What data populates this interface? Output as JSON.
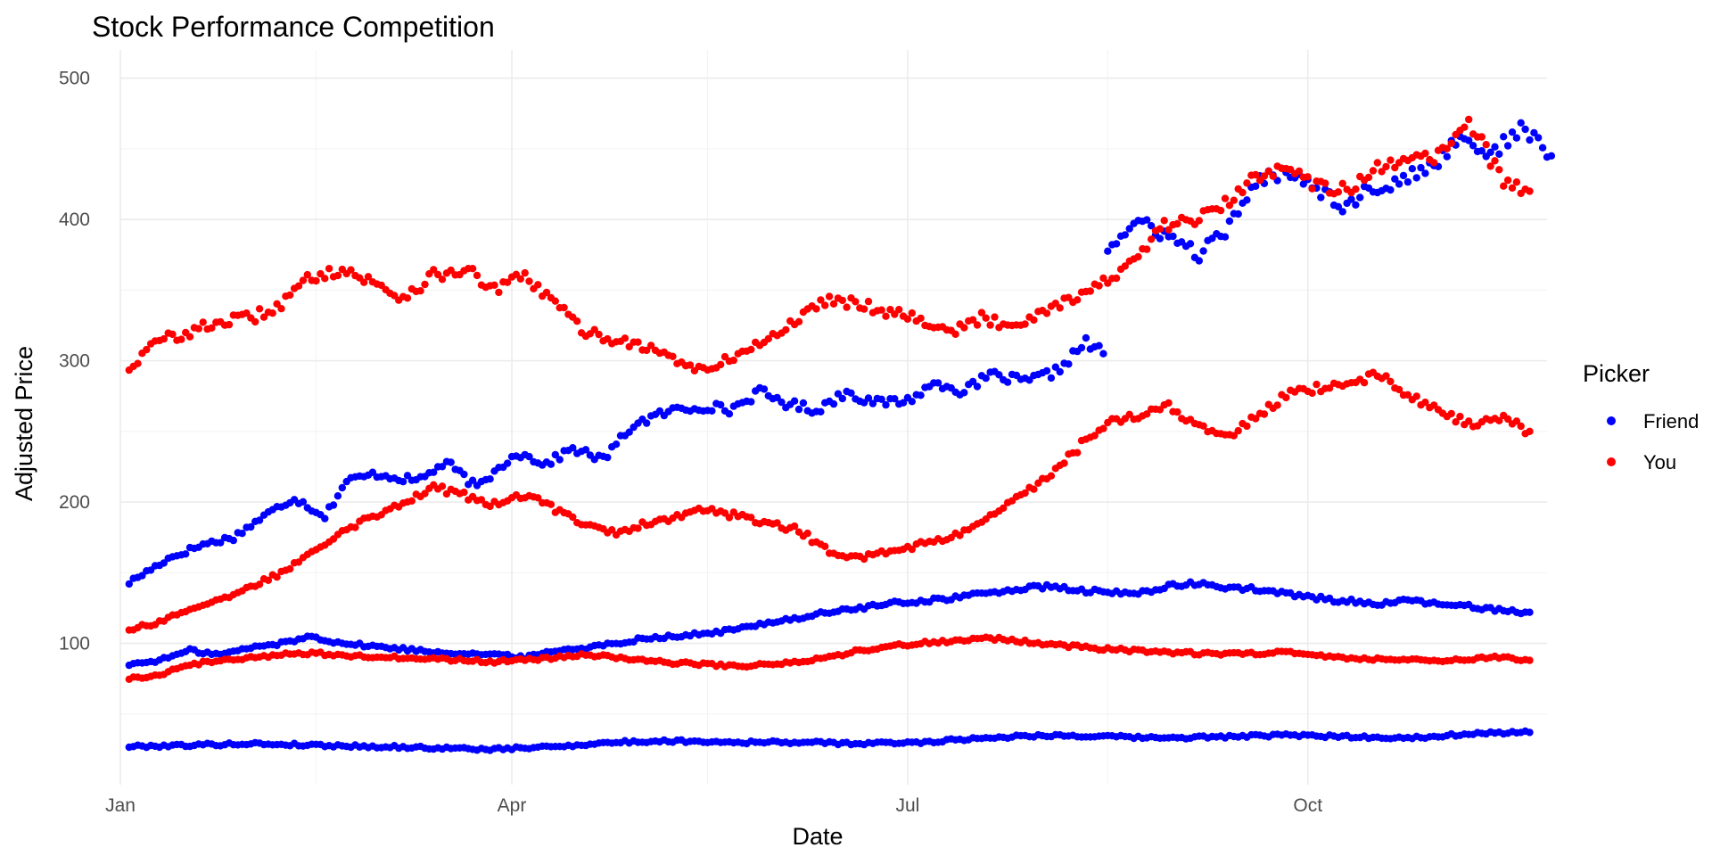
{
  "chart_data": {
    "type": "scatter",
    "title": "Stock Performance Competition",
    "xlabel": "Date",
    "ylabel": "Adjusted Price",
    "x_type": "date",
    "xlim": [
      "2023-01-01",
      "2023-11-25"
    ],
    "ylim": [
      0,
      520
    ],
    "x_ticks": [
      {
        "date": "2023-01-01",
        "label": "Jan"
      },
      {
        "date": "2023-04-01",
        "label": "Apr"
      },
      {
        "date": "2023-07-01",
        "label": "Jul"
      },
      {
        "date": "2023-10-01",
        "label": "Oct"
      }
    ],
    "x_minor_ticks": [
      "2023-02-15",
      "2023-05-16",
      "2023-08-16"
    ],
    "y_ticks": [
      100,
      200,
      300,
      400,
      500
    ],
    "y_minor_ticks": [
      50,
      150,
      250,
      350,
      450
    ],
    "grid": true,
    "legend": {
      "title": "Picker",
      "position": "right"
    },
    "series": [
      {
        "name": "Friend",
        "color": "#0000ff",
        "traces": [
          {
            "points": [
              [
                "2023-01-03",
                143
              ],
              [
                "2023-01-12",
                160
              ],
              [
                "2023-01-20",
                170
              ],
              [
                "2023-01-27",
                175
              ],
              [
                "2023-02-03",
                190
              ],
              [
                "2023-02-10",
                203
              ],
              [
                "2023-02-17",
                190
              ],
              [
                "2023-02-22",
                215
              ],
              [
                "2023-03-01",
                220
              ],
              [
                "2023-03-10",
                215
              ],
              [
                "2023-03-17",
                228
              ],
              [
                "2023-03-24",
                210
              ],
              [
                "2023-04-02",
                235
              ],
              [
                "2023-04-09",
                227
              ],
              [
                "2023-04-15",
                238
              ],
              [
                "2023-04-22",
                230
              ],
              [
                "2023-04-29",
                255
              ],
              [
                "2023-05-08",
                265
              ],
              [
                "2023-05-16",
                268
              ],
              [
                "2023-05-21",
                265
              ],
              [
                "2023-05-28",
                278
              ],
              [
                "2023-06-03",
                270
              ],
              [
                "2023-06-10",
                265
              ],
              [
                "2023-06-17",
                278
              ],
              [
                "2023-06-24",
                270
              ],
              [
                "2023-07-01",
                272
              ],
              [
                "2023-07-08",
                285
              ],
              [
                "2023-07-14",
                278
              ],
              [
                "2023-07-20",
                290
              ],
              [
                "2023-07-28",
                285
              ],
              [
                "2023-08-04",
                292
              ],
              [
                "2023-08-11",
                313
              ],
              [
                "2023-08-15",
                305
              ]
            ]
          },
          {
            "points": [
              [
                "2023-08-16",
                380
              ],
              [
                "2023-08-23",
                398
              ],
              [
                "2023-08-30",
                388
              ],
              [
                "2023-09-06",
                375
              ],
              [
                "2023-09-13",
                395
              ],
              [
                "2023-09-20",
                428
              ],
              [
                "2023-09-27",
                435
              ],
              [
                "2023-10-02",
                425
              ],
              [
                "2023-10-09",
                410
              ],
              [
                "2023-10-16",
                422
              ],
              [
                "2023-10-23",
                428
              ],
              [
                "2023-10-30",
                438
              ],
              [
                "2023-11-05",
                460
              ],
              [
                "2023-11-12",
                445
              ],
              [
                "2023-11-19",
                465
              ],
              [
                "2023-11-26",
                445
              ]
            ]
          }
        ]
      },
      {
        "name": "Friend",
        "color": "#0000ff",
        "points": [
          [
            "2023-01-03",
            85
          ],
          [
            "2023-01-10",
            88
          ],
          [
            "2023-01-17",
            95
          ],
          [
            "2023-01-24",
            92
          ],
          [
            "2023-01-31",
            97
          ],
          [
            "2023-02-07",
            100
          ],
          [
            "2023-02-14",
            105
          ],
          [
            "2023-02-21",
            100
          ],
          [
            "2023-02-28",
            98
          ],
          [
            "2023-03-07",
            96
          ],
          [
            "2023-03-14",
            94
          ],
          [
            "2023-03-21",
            93
          ],
          [
            "2023-03-28",
            92
          ],
          [
            "2023-04-04",
            90
          ],
          [
            "2023-04-11",
            95
          ],
          [
            "2023-04-18",
            97
          ],
          [
            "2023-04-25",
            100
          ],
          [
            "2023-05-02",
            104
          ],
          [
            "2023-05-09",
            105
          ],
          [
            "2023-05-16",
            107
          ],
          [
            "2023-05-23",
            110
          ],
          [
            "2023-05-30",
            115
          ],
          [
            "2023-06-06",
            118
          ],
          [
            "2023-06-13",
            122
          ],
          [
            "2023-06-20",
            125
          ],
          [
            "2023-06-27",
            128
          ],
          [
            "2023-07-04",
            130
          ],
          [
            "2023-07-11",
            132
          ],
          [
            "2023-07-18",
            135
          ],
          [
            "2023-07-25",
            138
          ],
          [
            "2023-08-01",
            140
          ],
          [
            "2023-08-08",
            138
          ],
          [
            "2023-08-15",
            136
          ],
          [
            "2023-08-22",
            135
          ],
          [
            "2023-08-29",
            140
          ],
          [
            "2023-09-05",
            142
          ],
          [
            "2023-09-12",
            140
          ],
          [
            "2023-09-19",
            138
          ],
          [
            "2023-09-26",
            135
          ],
          [
            "2023-10-03",
            132
          ],
          [
            "2023-10-10",
            130
          ],
          [
            "2023-10-17",
            128
          ],
          [
            "2023-10-24",
            130
          ],
          [
            "2023-10-31",
            128
          ],
          [
            "2023-11-07",
            126
          ],
          [
            "2023-11-14",
            124
          ],
          [
            "2023-11-21",
            122
          ]
        ]
      },
      {
        "name": "Friend",
        "color": "#0000ff",
        "points": [
          [
            "2023-01-03",
            27
          ],
          [
            "2023-01-17",
            28
          ],
          [
            "2023-01-31",
            29
          ],
          [
            "2023-02-14",
            28
          ],
          [
            "2023-02-28",
            27
          ],
          [
            "2023-03-14",
            26
          ],
          [
            "2023-03-28",
            25
          ],
          [
            "2023-04-11",
            27
          ],
          [
            "2023-04-25",
            30
          ],
          [
            "2023-05-09",
            31
          ],
          [
            "2023-05-23",
            30
          ],
          [
            "2023-06-06",
            30
          ],
          [
            "2023-06-20",
            29
          ],
          [
            "2023-07-04",
            30
          ],
          [
            "2023-07-18",
            33
          ],
          [
            "2023-08-01",
            35
          ],
          [
            "2023-08-15",
            34
          ],
          [
            "2023-08-29",
            33
          ],
          [
            "2023-09-12",
            34
          ],
          [
            "2023-09-26",
            35
          ],
          [
            "2023-10-10",
            34
          ],
          [
            "2023-10-24",
            33
          ],
          [
            "2023-11-07",
            36
          ],
          [
            "2023-11-21",
            37
          ]
        ]
      },
      {
        "name": "You",
        "color": "#ff0000",
        "points": [
          [
            "2023-01-03",
            295
          ],
          [
            "2023-01-10",
            315
          ],
          [
            "2023-01-17",
            320
          ],
          [
            "2023-01-24",
            328
          ],
          [
            "2023-01-31",
            330
          ],
          [
            "2023-02-07",
            340
          ],
          [
            "2023-02-14",
            360
          ],
          [
            "2023-02-21",
            365
          ],
          [
            "2023-02-28",
            355
          ],
          [
            "2023-03-07",
            345
          ],
          [
            "2023-03-14",
            360
          ],
          [
            "2023-03-21",
            365
          ],
          [
            "2023-03-28",
            350
          ],
          [
            "2023-04-04",
            360
          ],
          [
            "2023-04-11",
            340
          ],
          [
            "2023-04-18",
            320
          ],
          [
            "2023-04-25",
            315
          ],
          [
            "2023-05-02",
            310
          ],
          [
            "2023-05-09",
            300
          ],
          [
            "2023-05-16",
            292
          ],
          [
            "2023-05-23",
            305
          ],
          [
            "2023-05-30",
            315
          ],
          [
            "2023-06-06",
            330
          ],
          [
            "2023-06-13",
            345
          ],
          [
            "2023-06-20",
            340
          ],
          [
            "2023-06-27",
            335
          ],
          [
            "2023-07-04",
            330
          ],
          [
            "2023-07-11",
            320
          ],
          [
            "2023-07-18",
            330
          ],
          [
            "2023-07-25",
            325
          ],
          [
            "2023-08-01",
            335
          ],
          [
            "2023-08-08",
            345
          ],
          [
            "2023-08-15",
            355
          ],
          [
            "2023-08-22",
            370
          ],
          [
            "2023-08-29",
            395
          ],
          [
            "2023-09-05",
            400
          ],
          [
            "2023-09-12",
            410
          ],
          [
            "2023-09-19",
            430
          ],
          [
            "2023-09-26",
            440
          ],
          [
            "2023-10-03",
            425
          ],
          [
            "2023-10-10",
            420
          ],
          [
            "2023-10-17",
            435
          ],
          [
            "2023-10-24",
            440
          ],
          [
            "2023-10-31",
            445
          ],
          [
            "2023-11-07",
            470
          ],
          [
            "2023-11-14",
            430
          ],
          [
            "2023-11-21",
            420
          ]
        ]
      },
      {
        "name": "You",
        "color": "#ff0000",
        "points": [
          [
            "2023-01-03",
            110
          ],
          [
            "2023-01-10",
            115
          ],
          [
            "2023-01-17",
            125
          ],
          [
            "2023-01-24",
            130
          ],
          [
            "2023-01-31",
            140
          ],
          [
            "2023-02-07",
            150
          ],
          [
            "2023-02-14",
            165
          ],
          [
            "2023-02-21",
            180
          ],
          [
            "2023-02-28",
            190
          ],
          [
            "2023-03-07",
            200
          ],
          [
            "2023-03-14",
            210
          ],
          [
            "2023-03-21",
            205
          ],
          [
            "2023-03-28",
            198
          ],
          [
            "2023-04-04",
            205
          ],
          [
            "2023-04-11",
            195
          ],
          [
            "2023-04-18",
            185
          ],
          [
            "2023-04-25",
            178
          ],
          [
            "2023-05-02",
            185
          ],
          [
            "2023-05-09",
            190
          ],
          [
            "2023-05-16",
            195
          ],
          [
            "2023-05-23",
            190
          ],
          [
            "2023-05-30",
            185
          ],
          [
            "2023-06-06",
            180
          ],
          [
            "2023-06-13",
            165
          ],
          [
            "2023-06-20",
            160
          ],
          [
            "2023-06-27",
            165
          ],
          [
            "2023-07-04",
            170
          ],
          [
            "2023-07-11",
            175
          ],
          [
            "2023-07-18",
            185
          ],
          [
            "2023-07-25",
            200
          ],
          [
            "2023-08-01",
            215
          ],
          [
            "2023-08-08",
            235
          ],
          [
            "2023-08-15",
            255
          ],
          [
            "2023-08-22",
            260
          ],
          [
            "2023-08-29",
            270
          ],
          [
            "2023-09-05",
            255
          ],
          [
            "2023-09-12",
            245
          ],
          [
            "2023-09-19",
            260
          ],
          [
            "2023-09-26",
            275
          ],
          [
            "2023-10-03",
            280
          ],
          [
            "2023-10-10",
            285
          ],
          [
            "2023-10-17",
            290
          ],
          [
            "2023-10-24",
            275
          ],
          [
            "2023-10-31",
            265
          ],
          [
            "2023-11-07",
            255
          ],
          [
            "2023-11-14",
            260
          ],
          [
            "2023-11-21",
            250
          ]
        ]
      },
      {
        "name": "You",
        "color": "#ff0000",
        "points": [
          [
            "2023-01-03",
            75
          ],
          [
            "2023-01-10",
            78
          ],
          [
            "2023-01-17",
            85
          ],
          [
            "2023-01-24",
            88
          ],
          [
            "2023-01-31",
            90
          ],
          [
            "2023-02-07",
            92
          ],
          [
            "2023-02-14",
            93
          ],
          [
            "2023-02-21",
            92
          ],
          [
            "2023-02-28",
            90
          ],
          [
            "2023-03-07",
            90
          ],
          [
            "2023-03-14",
            89
          ],
          [
            "2023-03-21",
            88
          ],
          [
            "2023-03-28",
            87
          ],
          [
            "2023-04-04",
            88
          ],
          [
            "2023-04-11",
            90
          ],
          [
            "2023-04-18",
            92
          ],
          [
            "2023-04-25",
            90
          ],
          [
            "2023-05-02",
            88
          ],
          [
            "2023-05-09",
            86
          ],
          [
            "2023-05-16",
            85
          ],
          [
            "2023-05-23",
            84
          ],
          [
            "2023-05-30",
            85
          ],
          [
            "2023-06-06",
            87
          ],
          [
            "2023-06-13",
            90
          ],
          [
            "2023-06-20",
            95
          ],
          [
            "2023-06-27",
            98
          ],
          [
            "2023-07-04",
            100
          ],
          [
            "2023-07-11",
            102
          ],
          [
            "2023-07-18",
            104
          ],
          [
            "2023-07-25",
            102
          ],
          [
            "2023-08-01",
            100
          ],
          [
            "2023-08-08",
            98
          ],
          [
            "2023-08-15",
            96
          ],
          [
            "2023-08-22",
            95
          ],
          [
            "2023-08-29",
            94
          ],
          [
            "2023-09-05",
            93
          ],
          [
            "2023-09-12",
            92
          ],
          [
            "2023-09-19",
            93
          ],
          [
            "2023-09-26",
            94
          ],
          [
            "2023-10-03",
            92
          ],
          [
            "2023-10-10",
            90
          ],
          [
            "2023-10-17",
            89
          ],
          [
            "2023-10-24",
            88
          ],
          [
            "2023-10-31",
            88
          ],
          [
            "2023-11-07",
            89
          ],
          [
            "2023-11-14",
            90
          ],
          [
            "2023-11-21",
            88
          ]
        ]
      }
    ]
  }
}
